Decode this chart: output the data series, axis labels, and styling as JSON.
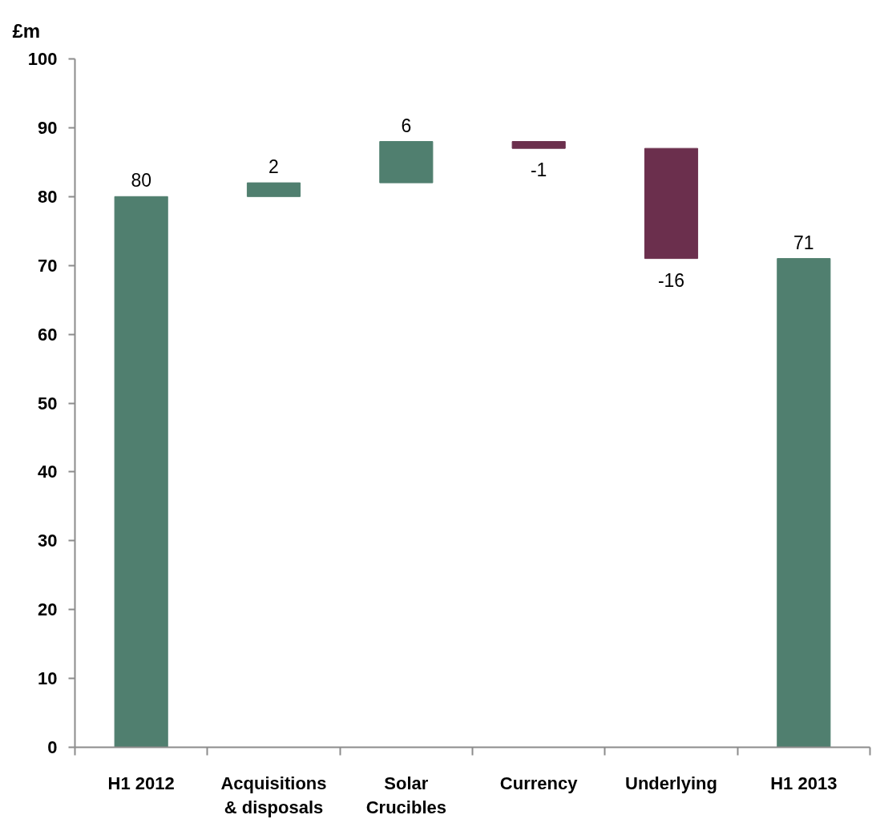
{
  "chart_data": {
    "type": "bar",
    "ylabel": "£m",
    "categories": [
      "H1 2012",
      "Acquisitions & disposals",
      "Solar Crucibles",
      "Currency",
      "Underlying",
      "H1 2013"
    ],
    "values": [
      80,
      2,
      6,
      -1,
      -16,
      71
    ],
    "base": [
      0,
      80,
      82,
      88,
      87,
      0
    ],
    "colors": [
      "#507f6f",
      "#507f6f",
      "#507f6f",
      "#6b2f4d",
      "#6b2f4d",
      "#507f6f"
    ],
    "ylim": [
      0,
      100
    ],
    "yticks": [
      0,
      10,
      20,
      30,
      40,
      50,
      60,
      70,
      80,
      90,
      100
    ],
    "data_labels": true
  }
}
